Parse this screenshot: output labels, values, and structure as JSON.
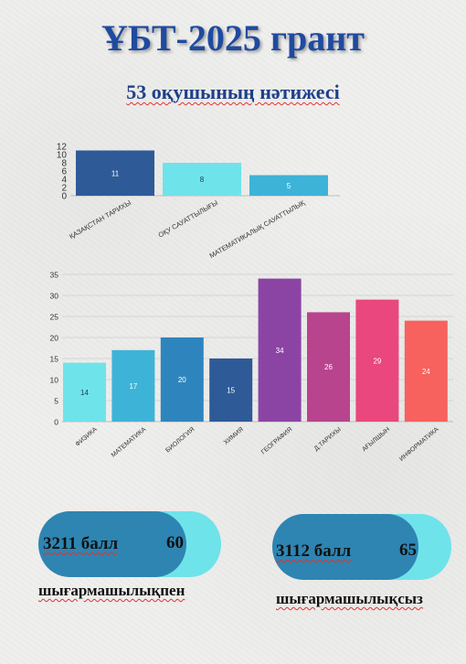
{
  "title": "ҰБТ-2025 грант",
  "subtitle": "53 оқушының нәтижесі",
  "chart_data": [
    {
      "type": "bar",
      "categories": [
        "ҚАЗАҚСТАН ТАРИХЫ",
        "ОҚУ САУАТТЫЛЫҒЫ",
        "МАТЕМАТИКАЛЫҚ САУАТТЫЛЫҚ"
      ],
      "values": [
        11,
        8,
        5
      ],
      "colors": [
        "#2e5a98",
        "#6fe3ea",
        "#3eb3d8"
      ],
      "ylim": [
        0,
        12
      ],
      "yticks": [
        0,
        2,
        4,
        6,
        8,
        10,
        12
      ],
      "grid": false
    },
    {
      "type": "bar",
      "categories": [
        "ФИЗИКА",
        "МАТЕМАТИКА",
        "БИОЛОГИЯ",
        "ХИМИЯ",
        "ГЕОГРАФИЯ",
        "Д.ТАРИХЫ",
        "АҒЫЛШЫН",
        "ИНФОРМАТИКА"
      ],
      "values": [
        14,
        17,
        20,
        15,
        34,
        26,
        29,
        24
      ],
      "colors": [
        "#6fe3ea",
        "#3eb3d8",
        "#2e85be",
        "#2e5a98",
        "#8c44a4",
        "#b9448e",
        "#e9477d",
        "#f7615e"
      ],
      "ylim": [
        0,
        35
      ],
      "yticks": [
        0,
        5,
        10,
        15,
        20,
        25,
        30,
        35
      ],
      "grid": true
    }
  ],
  "pills": [
    {
      "label": "3211 балл",
      "value": "60",
      "caption": "шығармашылықпен"
    },
    {
      "label": "3112 балл",
      "value": "65",
      "caption": "шығармашылықсыз"
    }
  ],
  "colors": {
    "title": "#1f4aa0",
    "pill_dark": "#2e85b2",
    "pill_light": "#6fe3ea"
  }
}
